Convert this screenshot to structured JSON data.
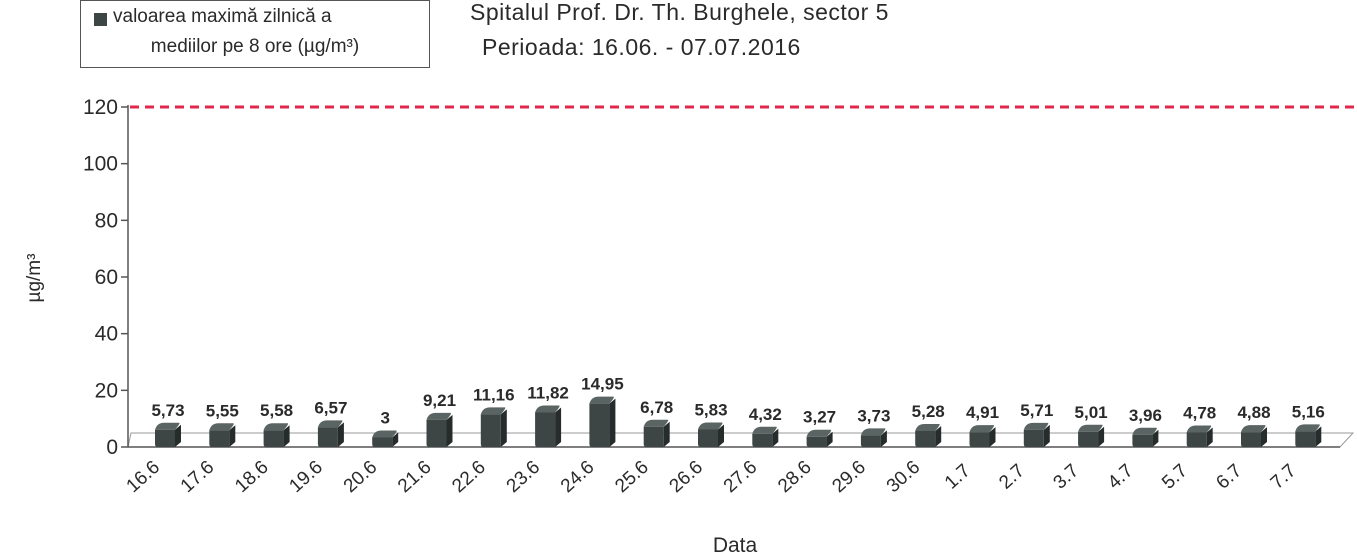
{
  "chart_data": {
    "type": "bar",
    "title": "Spitalul Prof. Dr. Th. Burghele, sector 5",
    "subtitle": "Perioada: 16.06. - 07.07.2016",
    "xlabel": "Data",
    "ylabel": "µg/m³",
    "ylim": [
      0,
      120
    ],
    "yticks": [
      "0",
      "20",
      "40",
      "60",
      "80",
      "100",
      "120"
    ],
    "grid": false,
    "legend_position": "top-left",
    "categories": [
      "16.6",
      "17.6",
      "18.6",
      "19.6",
      "20.6",
      "21.6",
      "22.6",
      "23.6",
      "24.6",
      "25.6",
      "26.6",
      "27.6",
      "28.6",
      "29.6",
      "30.6",
      "1.7",
      "2.7",
      "3.7",
      "4.7",
      "5.7",
      "6.7",
      "7.7"
    ],
    "series": [
      {
        "name_line1": "valoarea maximă zilnică a",
        "name_line2": "mediilor pe 8 ore (µg/m³)",
        "values": [
          5.73,
          5.55,
          5.58,
          6.57,
          3,
          9.21,
          11.16,
          11.82,
          14.95,
          6.78,
          5.83,
          4.32,
          3.27,
          3.73,
          5.28,
          4.91,
          5.71,
          5.01,
          3.96,
          4.78,
          4.88,
          5.16
        ],
        "labels": [
          "5,73",
          "5,55",
          "5,58",
          "6,57",
          "3",
          "9,21",
          "11,16",
          "11,82",
          "14,95",
          "6,78",
          "5,83",
          "4,32",
          "3,27",
          "3,73",
          "5,28",
          "4,91",
          "5,71",
          "5,01",
          "3,96",
          "4,78",
          "4,88",
          "5,16"
        ]
      }
    ],
    "limit_line": {
      "value": 120
    },
    "colors": {
      "bar": "#3d4644",
      "limit": "#e0284b",
      "axis": "#555555"
    }
  }
}
